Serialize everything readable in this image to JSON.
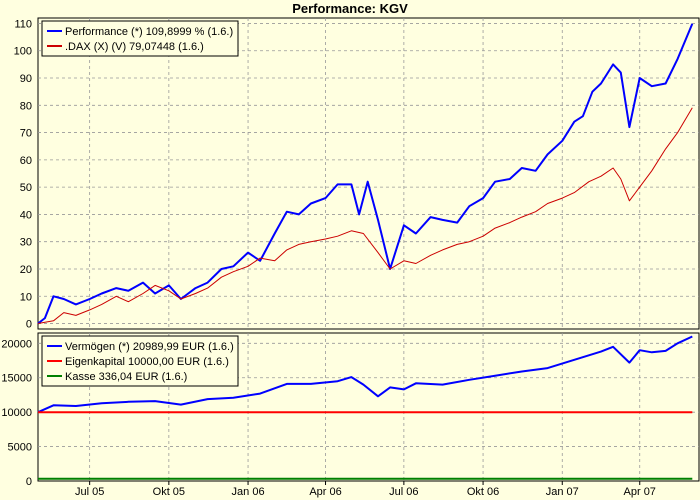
{
  "chart_data": [
    {
      "type": "line",
      "title": "Performance: KGV",
      "xlabel": "",
      "ylabel": "",
      "ylim": [
        -2,
        112
      ],
      "yticks": [
        0,
        10,
        20,
        30,
        40,
        50,
        60,
        70,
        80,
        90,
        100,
        110
      ],
      "grid": true,
      "legend_position": "top-left",
      "series": [
        {
          "name": "Performance (*) 109,8999 % (1.6.)",
          "color": "#0000ff",
          "x": [
            "2005-05-02",
            "2005-05-10",
            "2005-05-20",
            "2005-06-01",
            "2005-06-15",
            "2005-07-01",
            "2005-07-15",
            "2005-08-01",
            "2005-08-15",
            "2005-09-01",
            "2005-09-15",
            "2005-10-01",
            "2005-10-15",
            "2005-11-01",
            "2005-11-15",
            "2005-12-01",
            "2005-12-15",
            "2006-01-01",
            "2006-01-15",
            "2006-02-01",
            "2006-02-15",
            "2006-03-01",
            "2006-03-15",
            "2006-04-01",
            "2006-04-15",
            "2006-05-01",
            "2006-05-10",
            "2006-05-20",
            "2006-06-01",
            "2006-06-15",
            "2006-07-01",
            "2006-07-15",
            "2006-08-01",
            "2006-08-15",
            "2006-09-01",
            "2006-09-15",
            "2006-10-01",
            "2006-10-15",
            "2006-11-01",
            "2006-11-15",
            "2006-12-01",
            "2006-12-15",
            "2007-01-01",
            "2007-01-15",
            "2007-01-25",
            "2007-02-05",
            "2007-02-15",
            "2007-03-01",
            "2007-03-10",
            "2007-03-20",
            "2007-04-01",
            "2007-04-15",
            "2007-05-01",
            "2007-05-15",
            "2007-06-01"
          ],
          "values": [
            0,
            2,
            10,
            9,
            7,
            9,
            11,
            13,
            12,
            15,
            11,
            14,
            9,
            13,
            15,
            20,
            21,
            26,
            23,
            33,
            41,
            40,
            44,
            46,
            51,
            51,
            40,
            52,
            38,
            20,
            36,
            33,
            39,
            38,
            37,
            43,
            46,
            52,
            53,
            57,
            56,
            62,
            67,
            74,
            76,
            85,
            88,
            95,
            92,
            72,
            90,
            87,
            88,
            97,
            109.9
          ]
        },
        {
          "name": ".DAX (X) (V) 79,07448 (1.6.)",
          "color": "#cc0000",
          "x": [
            "2005-05-02",
            "2005-05-20",
            "2005-06-01",
            "2005-06-15",
            "2005-07-01",
            "2005-07-15",
            "2005-08-01",
            "2005-08-15",
            "2005-09-01",
            "2005-09-15",
            "2005-10-01",
            "2005-10-15",
            "2005-11-01",
            "2005-11-15",
            "2005-12-01",
            "2005-12-15",
            "2006-01-01",
            "2006-01-15",
            "2006-02-01",
            "2006-02-15",
            "2006-03-01",
            "2006-03-15",
            "2006-04-01",
            "2006-04-15",
            "2006-05-01",
            "2006-05-15",
            "2006-06-01",
            "2006-06-15",
            "2006-07-01",
            "2006-07-15",
            "2006-08-01",
            "2006-08-15",
            "2006-09-01",
            "2006-09-15",
            "2006-10-01",
            "2006-10-15",
            "2006-11-01",
            "2006-11-15",
            "2006-12-01",
            "2006-12-15",
            "2007-01-01",
            "2007-01-15",
            "2007-02-01",
            "2007-02-15",
            "2007-03-01",
            "2007-03-10",
            "2007-03-20",
            "2007-04-01",
            "2007-04-15",
            "2007-05-01",
            "2007-05-15",
            "2007-06-01"
          ],
          "values": [
            0,
            1,
            4,
            3,
            5,
            7,
            10,
            8,
            11,
            14,
            12,
            9,
            11,
            13,
            17,
            19,
            21,
            24,
            23,
            27,
            29,
            30,
            31,
            32,
            34,
            33,
            26,
            20,
            23,
            22,
            25,
            27,
            29,
            30,
            32,
            35,
            37,
            39,
            41,
            44,
            46,
            48,
            52,
            54,
            57,
            53,
            45,
            50,
            56,
            64,
            70,
            79.07
          ]
        }
      ]
    },
    {
      "type": "line",
      "xlabel": "",
      "ylabel": "",
      "ylim": [
        0,
        21500
      ],
      "yticks": [
        0,
        5000,
        10000,
        15000,
        20000
      ],
      "grid": true,
      "legend_position": "top-left",
      "xticks": [
        "Jul 05",
        "Okt 05",
        "Jan 06",
        "Apr 06",
        "Jul 06",
        "Okt 06",
        "Jan 07",
        "Apr 07"
      ],
      "series": [
        {
          "name": "Vermögen (*) 20989,99 EUR (1.6.)",
          "color": "#0000ff",
          "x": [
            "2005-05-02",
            "2005-05-20",
            "2005-06-15",
            "2005-07-15",
            "2005-08-15",
            "2005-09-15",
            "2005-10-15",
            "2005-11-15",
            "2005-12-15",
            "2006-01-15",
            "2006-02-15",
            "2006-03-15",
            "2006-04-15",
            "2006-05-01",
            "2006-05-15",
            "2006-06-01",
            "2006-06-15",
            "2006-07-01",
            "2006-07-15",
            "2006-08-15",
            "2006-09-15",
            "2006-10-15",
            "2006-11-15",
            "2006-12-15",
            "2007-01-15",
            "2007-02-15",
            "2007-03-01",
            "2007-03-20",
            "2007-04-01",
            "2007-04-15",
            "2007-05-01",
            "2007-05-15",
            "2007-06-01"
          ],
          "values": [
            10000,
            11000,
            10900,
            11300,
            11500,
            11600,
            11100,
            11900,
            12100,
            12700,
            14100,
            14100,
            14500,
            15100,
            14000,
            12300,
            13600,
            13300,
            14200,
            14000,
            14700,
            15300,
            15900,
            16400,
            17600,
            18800,
            19500,
            17200,
            19000,
            18700,
            18900,
            20000,
            20990
          ]
        },
        {
          "name": "Eigenkapital 10000,00 EUR (1.6.)",
          "color": "#ff0000",
          "x": [
            "2005-05-02",
            "2007-06-01"
          ],
          "values": [
            10000,
            10000
          ]
        },
        {
          "name": "Kasse 336,04 EUR (1.6.)",
          "color": "#008000",
          "x": [
            "2005-05-02",
            "2007-06-01"
          ],
          "values": [
            336.04,
            336.04
          ]
        }
      ]
    }
  ]
}
